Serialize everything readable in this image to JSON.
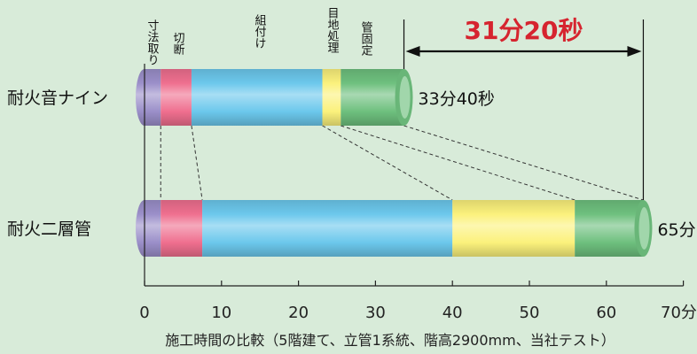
{
  "chart_data": {
    "type": "bar",
    "orientation": "horizontal",
    "stacked": true,
    "title": "",
    "xlabel": "施工時間の比較（5階建て、立管1系統、階高2900mm、当社テスト）",
    "ylabel": "",
    "xlim": [
      0,
      70
    ],
    "x_ticks": [
      "0",
      "10",
      "20",
      "30",
      "40",
      "50",
      "60",
      "70分"
    ],
    "grid": false,
    "legend": "none",
    "stages": [
      {
        "label": "寸法取り",
        "color": "#9b8fc9"
      },
      {
        "label": "切断",
        "color": "#ef6f8f"
      },
      {
        "label": "組付け",
        "color": "#6cc8ec"
      },
      {
        "label": "目地処理",
        "color": "#fbf17c"
      },
      {
        "label": "管固定",
        "color": "#6ec07e"
      }
    ],
    "categories": [
      "耐火音ナイン",
      "耐火二層管"
    ],
    "series": [
      {
        "name": "耐火音ナイン",
        "total_label": "33分40秒",
        "boundaries": [
          0,
          2.1,
          6.1,
          23.1,
          25.5,
          33.7
        ]
      },
      {
        "name": "耐火二層管",
        "total_label": "65分",
        "boundaries": [
          0,
          2.1,
          7.5,
          40.0,
          55.9,
          64.8
        ]
      }
    ],
    "annotation": {
      "text": "31分20秒",
      "from": 33.7,
      "to": 64.8,
      "color": "#d6242f"
    }
  }
}
